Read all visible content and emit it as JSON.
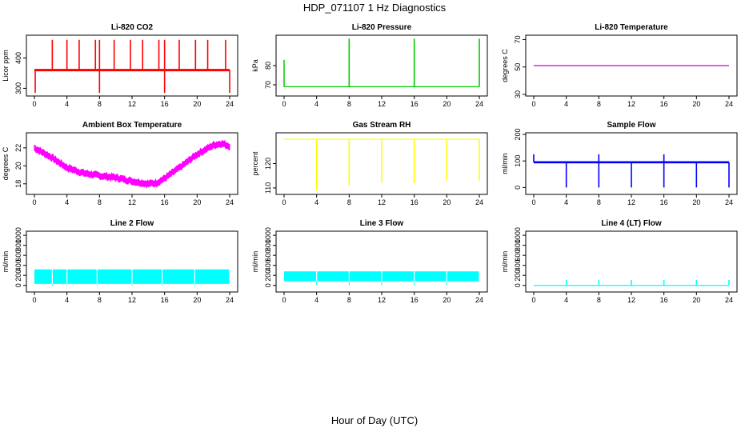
{
  "figure": {
    "title": "HDP_071107  1 Hz Diagnostics",
    "xlabel": "Hour of Day (UTC)"
  },
  "chart_data": [
    {
      "type": "line",
      "title": "Li-820 CO2",
      "ylabel": "Licor ppm",
      "color": "#ff0000",
      "xlim": [
        0,
        24
      ],
      "x_ticks": [
        0,
        4,
        8,
        12,
        16,
        20,
        24
      ],
      "ylim": [
        280,
        470
      ],
      "y_ticks": [
        300,
        400
      ],
      "baseline": 360,
      "series": [
        {
          "values_description_x": [
            0,
            24
          ],
          "values": [
            360,
            360
          ]
        }
      ],
      "spikes_up": [
        2.2,
        4.0,
        5.5,
        7.5,
        8.0,
        9.8,
        11.8,
        13.3,
        15.3,
        16.0,
        17.8,
        19.8,
        21.3,
        23.5
      ],
      "spikes_up_value": 460,
      "spikes_down": [
        0.1,
        8.0,
        16.0,
        24.0
      ],
      "spikes_down_value": 285
    },
    {
      "type": "line",
      "title": "Li-820 Pressure",
      "ylabel": "kPa",
      "color": "#00cc00",
      "xlim": [
        0,
        24
      ],
      "x_ticks": [
        0,
        4,
        8,
        12,
        16,
        20,
        24
      ],
      "ylim": [
        65,
        95
      ],
      "y_ticks": [
        70,
        80
      ],
      "baseline": 69,
      "spikes_up": [
        8.0,
        16.0,
        24.0
      ],
      "spikes_up_value": 94,
      "start_value": 83
    },
    {
      "type": "line",
      "title": "Li-820 Temperature",
      "ylabel": "degrees C",
      "color": "#cc00cc",
      "xlim": [
        0,
        24
      ],
      "x_ticks": [
        0,
        4,
        8,
        12,
        16,
        20,
        24
      ],
      "ylim": [
        30,
        72
      ],
      "y_ticks": [
        30,
        50,
        70
      ],
      "baseline": 51
    },
    {
      "type": "area",
      "title": "Ambient Box Temperature",
      "ylabel": "degrees C",
      "color": "#ff00ff",
      "xlim": [
        0,
        24
      ],
      "x_ticks": [
        0,
        4,
        8,
        12,
        16,
        20,
        24
      ],
      "ylim": [
        17,
        23.5
      ],
      "y_ticks": [
        18,
        20,
        22
      ],
      "x": [
        0,
        2,
        4,
        6,
        8,
        10,
        12,
        14,
        15,
        16,
        18,
        20,
        22,
        23,
        24
      ],
      "y": [
        22.0,
        21.0,
        19.8,
        19.2,
        18.9,
        18.7,
        18.3,
        18.0,
        18.1,
        18.6,
        19.9,
        21.3,
        22.3,
        22.5,
        22.2
      ],
      "band": 0.6
    },
    {
      "type": "line",
      "title": "Gas Stream RH",
      "ylabel": "percent",
      "color": "#ffff00",
      "xlim": [
        0,
        24
      ],
      "x_ticks": [
        0,
        4,
        8,
        12,
        16,
        20,
        24
      ],
      "ylim": [
        108,
        132
      ],
      "y_ticks": [
        110,
        120
      ],
      "baseline": 130,
      "spikes_down": [
        4.0,
        8.0,
        12.0,
        16.0,
        20.0,
        24.0
      ],
      "spikes_down_values": [
        109,
        111,
        112,
        112,
        113,
        113
      ]
    },
    {
      "type": "line",
      "title": "Sample Flow",
      "ylabel": "ml/min",
      "color": "#0000ff",
      "xlim": [
        0,
        24
      ],
      "x_ticks": [
        0,
        4,
        8,
        12,
        16,
        20,
        24
      ],
      "ylim": [
        -20,
        200
      ],
      "y_ticks": [
        0,
        100,
        200
      ],
      "baseline": 95,
      "band": 8,
      "spikes_down": [
        4.0,
        8.0,
        12.0,
        16.0,
        20.0,
        24.0
      ],
      "spikes_down_value": 0,
      "spikes_up": [
        0.0,
        8.0,
        16.0
      ],
      "spikes_up_value": 125
    },
    {
      "type": "area",
      "title": "Line 2 Flow",
      "ylabel": "ml/min",
      "color": "#00ffff",
      "xlim": [
        0,
        24
      ],
      "x_ticks": [
        0,
        4,
        8,
        12,
        16,
        20,
        24
      ],
      "ylim": [
        -100,
        1050
      ],
      "y_ticks": [
        0,
        200,
        400,
        600,
        800,
        1000
      ],
      "band_low": 30,
      "band_high": 320,
      "gaps": [
        2.2,
        4.0,
        7.7,
        12.0,
        15.7,
        19.7
      ]
    },
    {
      "type": "area",
      "title": "Line 3 Flow",
      "ylabel": "ml/min",
      "color": "#00ffff",
      "xlim": [
        0,
        24
      ],
      "x_ticks": [
        0,
        4,
        8,
        12,
        16,
        20,
        24
      ],
      "ylim": [
        -100,
        1050
      ],
      "y_ticks": [
        0,
        200,
        400,
        600,
        800,
        1000
      ],
      "band_low": 80,
      "band_high": 280,
      "gaps": [
        4.0,
        8.0,
        12.0,
        16.0,
        20.0
      ]
    },
    {
      "type": "line",
      "title": "Line 4 (LT) Flow",
      "ylabel": "ml/min",
      "color": "#00ffff",
      "xlim": [
        0,
        24
      ],
      "x_ticks": [
        0,
        4,
        8,
        12,
        16,
        20,
        24
      ],
      "ylim": [
        -100,
        1050
      ],
      "y_ticks": [
        0,
        200,
        400,
        600,
        800,
        1000
      ],
      "baseline": 0,
      "spikes_up": [
        4.0,
        8.0,
        12.0,
        16.0,
        20.0,
        24.0
      ],
      "spikes_up_value": 110
    }
  ]
}
